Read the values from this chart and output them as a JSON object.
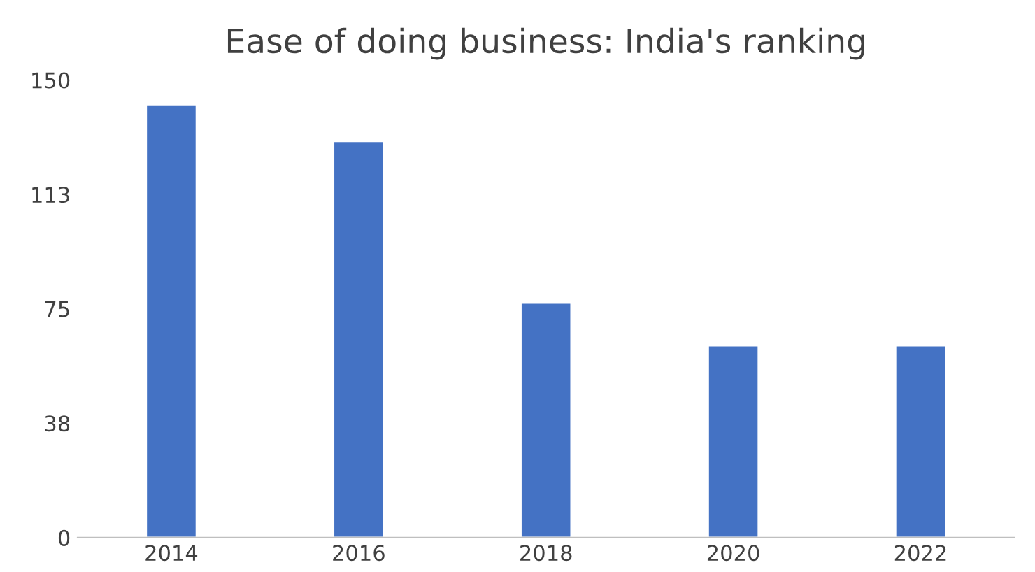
{
  "chart_data": {
    "type": "bar",
    "title": "Ease of doing business: India's ranking",
    "categories": [
      "2014",
      "2016",
      "2018",
      "2020",
      "2022"
    ],
    "values": [
      142,
      130,
      77,
      63,
      63
    ],
    "color": "#4472c4",
    "ylim": [
      0,
      150
    ],
    "yticks": [
      0,
      {
        "value": 37.5,
        "label": "38"
      },
      75,
      {
        "value": 112.5,
        "label": "113"
      },
      150
    ],
    "grid": false
  }
}
